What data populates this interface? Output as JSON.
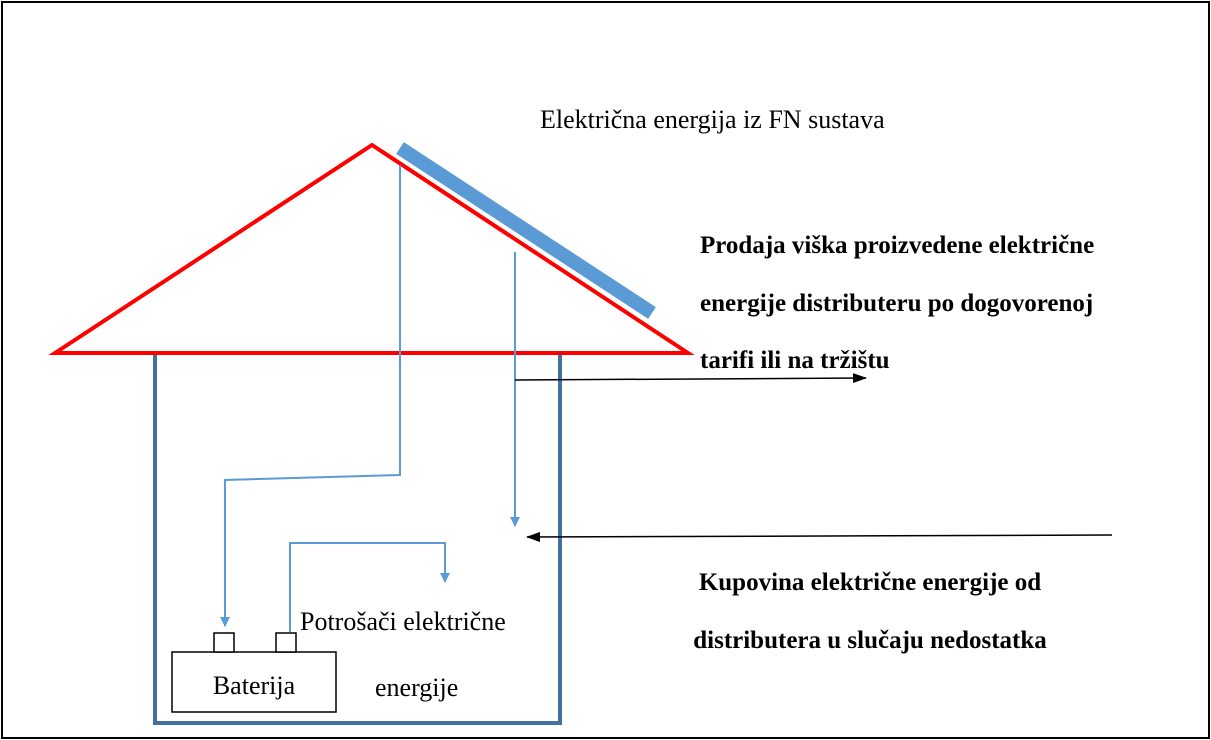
{
  "title": "Električna energija iz FN sustava",
  "sell_label": {
    "lines": [
      "Prodaja viška proizvedene električne",
      "energije distributeru po dogovorenoj",
      "tarifi ili na tržištu"
    ]
  },
  "buy_label": {
    "lines": [
      "Kupovina električne energije od",
      "distributera u slučaju nedostatka"
    ]
  },
  "consumers_label": {
    "lines": [
      "Potrošači električne",
      "energije"
    ]
  },
  "battery_label": "Baterija"
}
